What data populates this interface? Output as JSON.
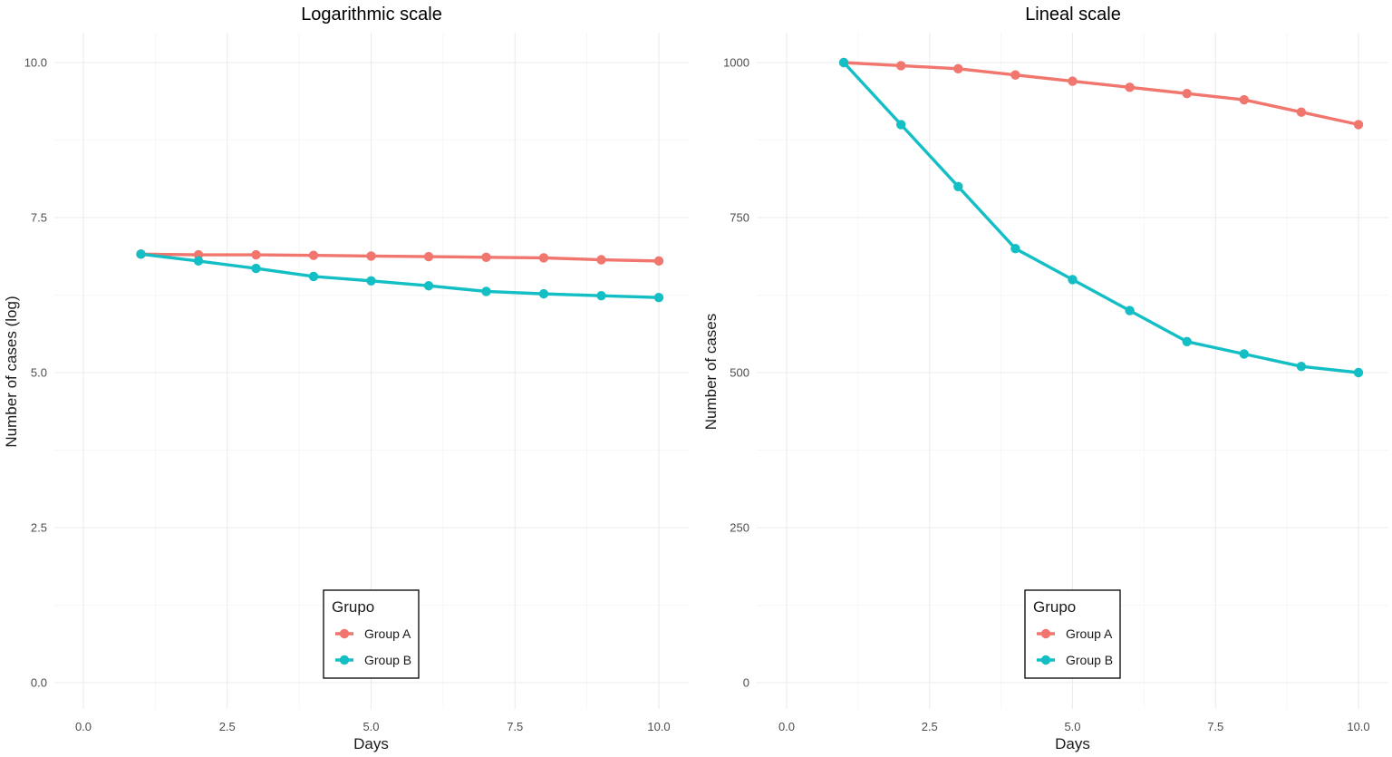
{
  "colors": {
    "group_a": "#F0766E",
    "group_b": "#13BFC4"
  },
  "legend": {
    "title": "Grupo",
    "items": [
      {
        "label": "Group A",
        "color": "#F0766E"
      },
      {
        "label": "Group B",
        "color": "#13BFC4"
      }
    ]
  },
  "chart_data": [
    {
      "type": "line",
      "title": "Logarithmic scale",
      "xlabel": "Days",
      "ylabel": "Number of cases (log)",
      "xlim": [
        0,
        10
      ],
      "ylim": [
        0,
        10
      ],
      "xticks": [
        "0.0",
        "2.5",
        "5.0",
        "7.5",
        "10.0"
      ],
      "yticks": [
        "0.0",
        "2.5",
        "5.0",
        "7.5",
        "10.0"
      ],
      "x": [
        1,
        2,
        3,
        4,
        5,
        6,
        7,
        8,
        9,
        10
      ],
      "series": [
        {
          "name": "Group A",
          "values": [
            6.91,
            6.9,
            6.9,
            6.89,
            6.88,
            6.87,
            6.86,
            6.85,
            6.82,
            6.8
          ]
        },
        {
          "name": "Group B",
          "values": [
            6.91,
            6.8,
            6.68,
            6.55,
            6.48,
            6.4,
            6.31,
            6.27,
            6.24,
            6.21
          ]
        }
      ],
      "grid": true,
      "legend_position": "bottom-center"
    },
    {
      "type": "line",
      "title": "Lineal scale",
      "xlabel": "Days",
      "ylabel": "Number of cases",
      "xlim": [
        0,
        10
      ],
      "ylim": [
        0,
        1000
      ],
      "xticks": [
        "0.0",
        "2.5",
        "5.0",
        "7.5",
        "10.0"
      ],
      "yticks": [
        "0",
        "250",
        "500",
        "750",
        "1000"
      ],
      "x": [
        1,
        2,
        3,
        4,
        5,
        6,
        7,
        8,
        9,
        10
      ],
      "series": [
        {
          "name": "Group A",
          "values": [
            1000,
            995,
            990,
            980,
            970,
            960,
            950,
            940,
            920,
            900
          ]
        },
        {
          "name": "Group B",
          "values": [
            1000,
            900,
            800,
            700,
            650,
            600,
            550,
            530,
            510,
            500
          ]
        }
      ],
      "grid": true,
      "legend_position": "bottom-center"
    }
  ]
}
